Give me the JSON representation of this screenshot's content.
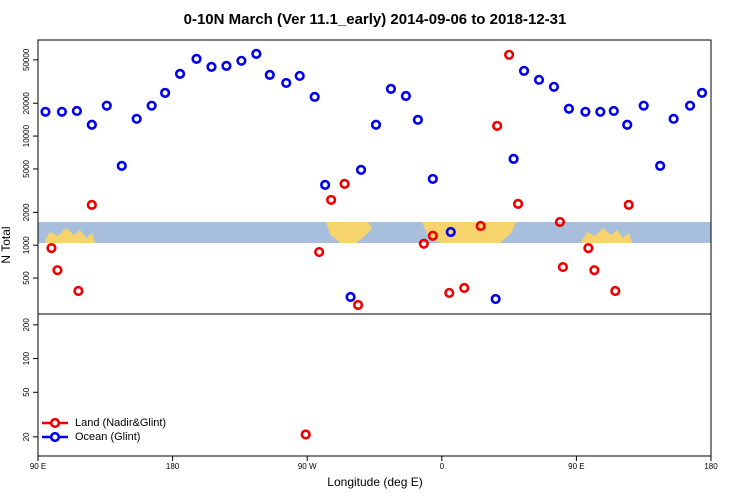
{
  "chart_data": [
    {
      "type": "scatter",
      "title": "0-10N March (Ver 11.1_early)   2014-09-06 to 2018-12-31",
      "ylabel": "N Total",
      "ylog": true,
      "xlim": [
        90,
        540
      ],
      "ylim": [
        234,
        76000
      ],
      "yticks": [
        500,
        1000,
        2000,
        5000,
        10000,
        20000,
        50000
      ],
      "series": [
        {
          "name": "Land (Nadir&Glint)",
          "color": "#ee0000",
          "x": [
            99,
            103,
            117,
            126,
            278,
            286,
            295,
            304,
            348,
            354,
            365,
            375,
            386,
            397,
            405,
            411,
            439,
            441,
            458,
            462,
            476,
            485
          ],
          "values": [
            940,
            590,
            380,
            2340,
            865,
            2600,
            3650,
            283,
            1030,
            1220,
            365,
            405,
            1500,
            12400,
            55600,
            2390,
            1630,
            630,
            940,
            590,
            380,
            2340
          ]
        },
        {
          "name": "Ocean (Glint)",
          "color": "#0000ee",
          "x": [
            95,
            106,
            116,
            126,
            136,
            146,
            156,
            166,
            175,
            185,
            196,
            206,
            216,
            226,
            236,
            245,
            256,
            265,
            275,
            282,
            299,
            306,
            316,
            326,
            336,
            344,
            354,
            366,
            396,
            408,
            415,
            425,
            435,
            445,
            456,
            466,
            475,
            484,
            495,
            506,
            515,
            526,
            534
          ],
          "values": [
            16700,
            16700,
            17000,
            12700,
            19000,
            5330,
            14400,
            19000,
            24900,
            37200,
            51000,
            43100,
            44000,
            49000,
            56700,
            36400,
            30700,
            35600,
            22900,
            3570,
            335,
            4900,
            12700,
            27100,
            23300,
            14100,
            4050,
            1320,
            321,
            6180,
            39600,
            32800,
            28300,
            17800,
            16700,
            16700,
            17000,
            12700,
            19000,
            5330,
            14400,
            19000,
            24900
          ]
        }
      ]
    },
    {
      "type": "scatter",
      "xlabel": "Longitude (deg E)",
      "ylog": true,
      "xlim": [
        90,
        540
      ],
      "xticks": [
        {
          "value": 90,
          "label": "90 E"
        },
        180,
        {
          "value": 270,
          "label": "90 W"
        },
        {
          "value": 360,
          "label": "0"
        },
        {
          "value": 450,
          "label": "90 E"
        },
        {
          "value": 540,
          "label": "180"
        }
      ],
      "ylim": [
        13.5,
        250
      ],
      "yticks": [
        20,
        50,
        100,
        200
      ],
      "legend": "lower left",
      "series": [
        {
          "name": "Land (Nadir&Glint)",
          "color": "#ee0000",
          "x": [
            269
          ],
          "values": [
            21
          ]
        },
        {
          "name": "Ocean (Glint)",
          "color": "#0000ee",
          "x": [],
          "values": []
        }
      ]
    }
  ]
}
